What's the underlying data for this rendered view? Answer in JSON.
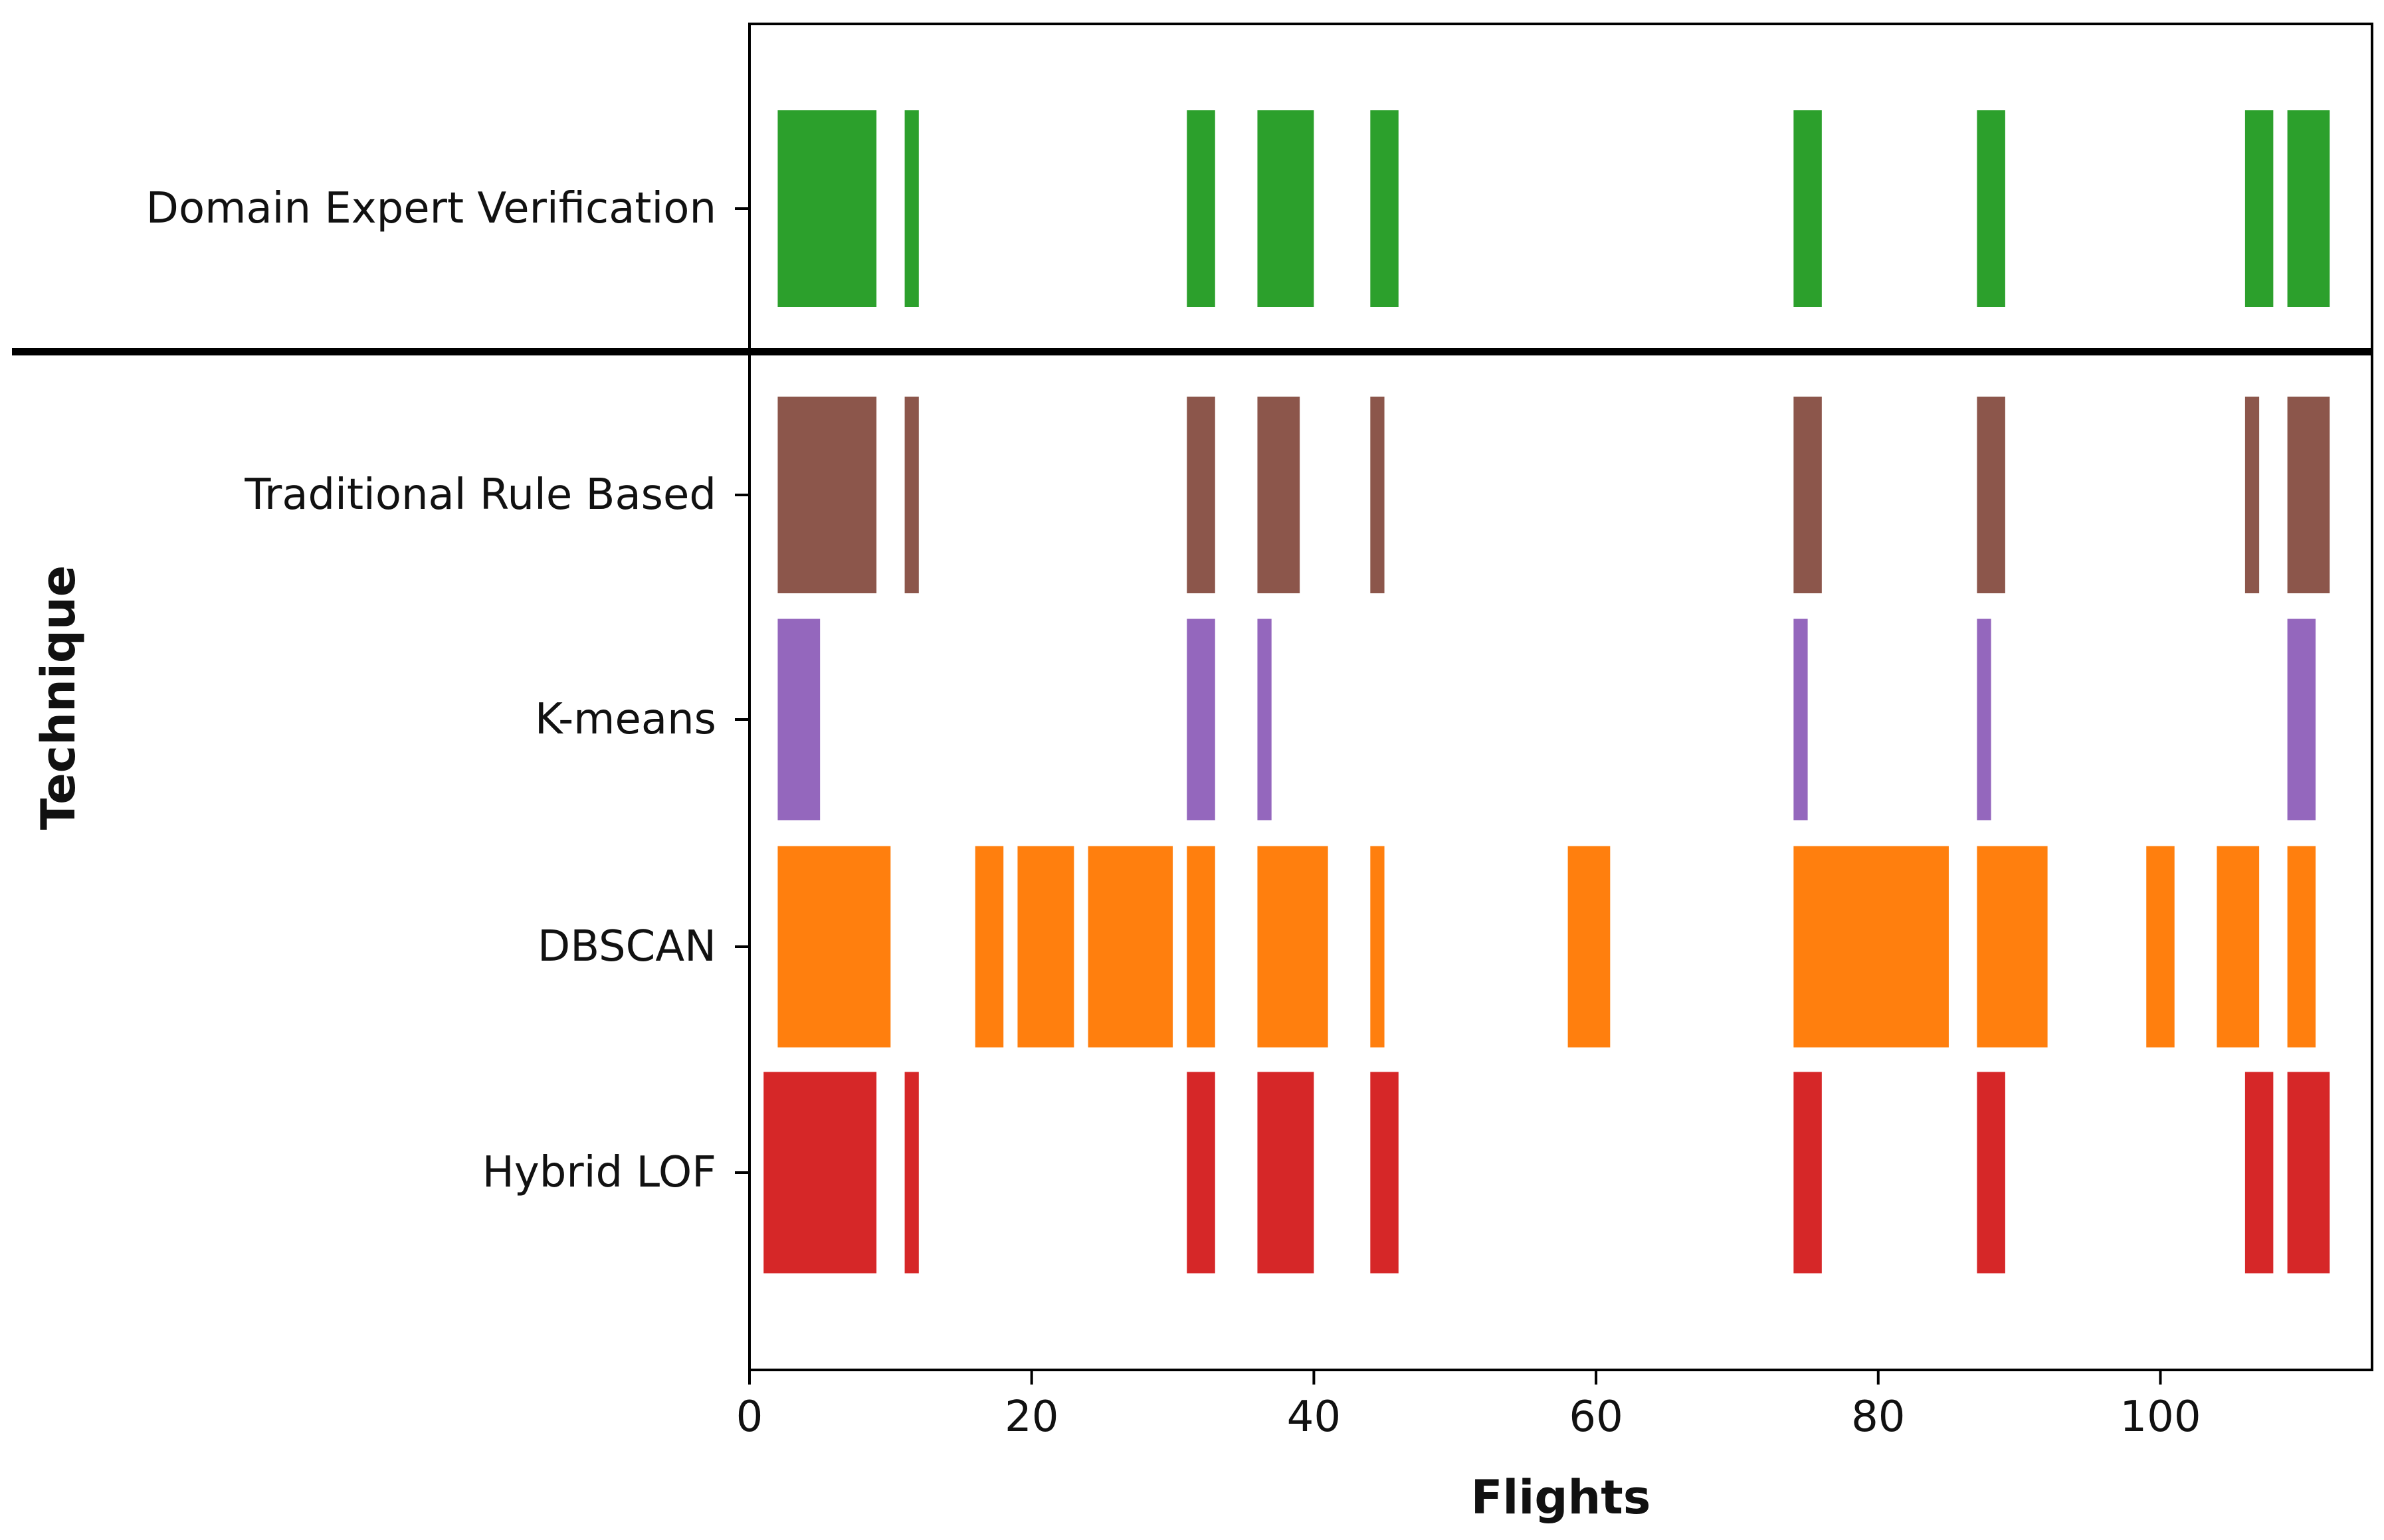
{
  "chart_data": {
    "type": "broken-barh",
    "title": "",
    "xlabel": "Flights",
    "ylabel": "Technique",
    "xlim": [
      0,
      115
    ],
    "xticks": [
      0,
      20,
      40,
      60,
      80,
      100
    ],
    "grid": false,
    "legend": "none",
    "separator_after_category": "Domain Expert Verification",
    "categories": [
      {
        "name": "Domain Expert Verification",
        "color": "#2ca02c",
        "intervals": [
          [
            2,
            9
          ],
          [
            11,
            12
          ],
          [
            31,
            33
          ],
          [
            36,
            40
          ],
          [
            44,
            46
          ],
          [
            74,
            76
          ],
          [
            87,
            89
          ],
          [
            106,
            108
          ],
          [
            109,
            112
          ]
        ]
      },
      {
        "name": "Traditional Rule Based",
        "color": "#8c564b",
        "intervals": [
          [
            2,
            9
          ],
          [
            11,
            12
          ],
          [
            31,
            33
          ],
          [
            36,
            39
          ],
          [
            44,
            45
          ],
          [
            74,
            76
          ],
          [
            87,
            89
          ],
          [
            106,
            107
          ],
          [
            109,
            112
          ]
        ]
      },
      {
        "name": "K-means",
        "color": "#9467bd",
        "intervals": [
          [
            2,
            5
          ],
          [
            31,
            33
          ],
          [
            36,
            37
          ],
          [
            74,
            75
          ],
          [
            87,
            88
          ],
          [
            109,
            111
          ]
        ]
      },
      {
        "name": "DBSCAN",
        "color": "#ff7f0e",
        "intervals": [
          [
            2,
            10
          ],
          [
            16,
            18
          ],
          [
            19,
            23
          ],
          [
            24,
            30
          ],
          [
            31,
            33
          ],
          [
            36,
            41
          ],
          [
            44,
            45
          ],
          [
            58,
            61
          ],
          [
            74,
            85
          ],
          [
            87,
            92
          ],
          [
            99,
            101
          ],
          [
            104,
            107
          ],
          [
            109,
            111
          ]
        ]
      },
      {
        "name": "Hybrid LOF",
        "color": "#d62728",
        "intervals": [
          [
            1,
            9
          ],
          [
            11,
            12
          ],
          [
            31,
            33
          ],
          [
            36,
            40
          ],
          [
            44,
            46
          ],
          [
            74,
            76
          ],
          [
            87,
            89
          ],
          [
            106,
            108
          ],
          [
            109,
            112
          ]
        ]
      }
    ]
  }
}
